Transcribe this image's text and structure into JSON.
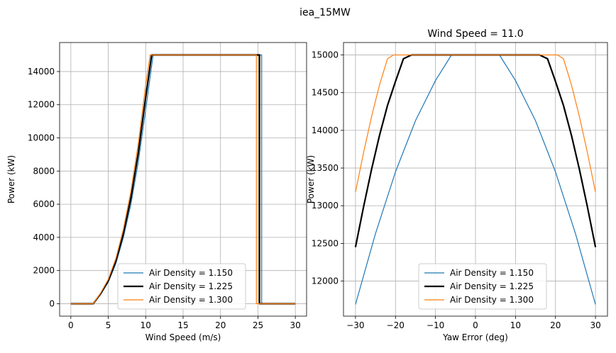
{
  "suptitle": "iea_15MW",
  "chart_data": [
    {
      "type": "line",
      "title": "",
      "xlabel": "Wind Speed (m/s)",
      "ylabel": "Power (kW)",
      "xlim": [
        -1.5,
        31.5
      ],
      "ylim": [
        -750,
        15750
      ],
      "xticks": [
        0,
        5,
        10,
        15,
        20,
        25,
        30
      ],
      "yticks": [
        0,
        2000,
        4000,
        6000,
        8000,
        10000,
        12000,
        14000
      ],
      "grid": true,
      "legend_position": "lower-right",
      "series": [
        {
          "name": "Air Density = 1.150",
          "color": "#1f77b4",
          "width": "thin",
          "x": [
            0,
            3,
            4,
            5,
            6,
            7,
            8,
            9,
            10,
            11,
            25.5,
            25.5,
            30
          ],
          "y": [
            0,
            0,
            580,
            1300,
            2400,
            3950,
            5950,
            8500,
            11700,
            15000,
            15000,
            0,
            0
          ]
        },
        {
          "name": "Air Density = 1.225",
          "color": "#000000",
          "width": "thick",
          "x": [
            0,
            3,
            4,
            5,
            6,
            7,
            8,
            9,
            10,
            10.8,
            25.2,
            25.2,
            30
          ],
          "y": [
            0,
            0,
            620,
            1380,
            2560,
            4200,
            6330,
            9050,
            12450,
            15000,
            15000,
            0,
            0
          ]
        },
        {
          "name": "Air Density = 1.300",
          "color": "#ff7f0e",
          "width": "thin",
          "x": [
            0,
            3,
            4,
            5,
            6,
            7,
            8,
            9,
            10,
            10.6,
            24.8,
            24.8,
            30
          ],
          "y": [
            0,
            0,
            660,
            1470,
            2710,
            4450,
            6720,
            9600,
            13200,
            15000,
            15000,
            0,
            0
          ]
        }
      ]
    },
    {
      "type": "line",
      "title": "Wind Speed = 11.0",
      "xlabel": "Yaw Error (deg)",
      "ylabel": "Power (kW)",
      "xlim": [
        -33,
        33
      ],
      "ylim": [
        11535,
        15165
      ],
      "xticks": [
        -30,
        -20,
        -10,
        0,
        10,
        20,
        30
      ],
      "yticks": [
        12000,
        12500,
        13000,
        13500,
        14000,
        14500,
        15000
      ],
      "grid": true,
      "legend_position": "lower-center",
      "series": [
        {
          "name": "Air Density = 1.150",
          "color": "#1f77b4",
          "width": "thin",
          "x": [
            -30,
            -25,
            -20,
            -15,
            -10,
            -6,
            0,
            6,
            10,
            15,
            20,
            25,
            30
          ],
          "y": [
            11690,
            12630,
            13450,
            14130,
            14660,
            15000,
            15000,
            15000,
            14660,
            14130,
            13450,
            12630,
            11690
          ]
        },
        {
          "name": "Air Density = 1.225",
          "color": "#000000",
          "width": "thick",
          "x": [
            -30,
            -28,
            -26,
            -24,
            -22,
            -20,
            -18,
            -16,
            -15,
            0,
            15,
            16,
            18,
            20,
            22,
            24,
            26,
            28,
            30
          ],
          "y": [
            12450,
            12980,
            13480,
            13930,
            14330,
            14650,
            14950,
            15000,
            15000,
            15000,
            15000,
            15000,
            14950,
            14650,
            14330,
            13930,
            13480,
            12980,
            12450
          ]
        },
        {
          "name": "Air Density = 1.300",
          "color": "#ff7f0e",
          "width": "thin",
          "x": [
            -30,
            -28,
            -26,
            -24,
            -22,
            -20.5,
            0,
            20.5,
            22,
            24,
            26,
            28,
            30
          ],
          "y": [
            13180,
            13700,
            14180,
            14600,
            14950,
            15000,
            15000,
            15000,
            14950,
            14600,
            14180,
            13700,
            13180
          ]
        }
      ]
    }
  ]
}
